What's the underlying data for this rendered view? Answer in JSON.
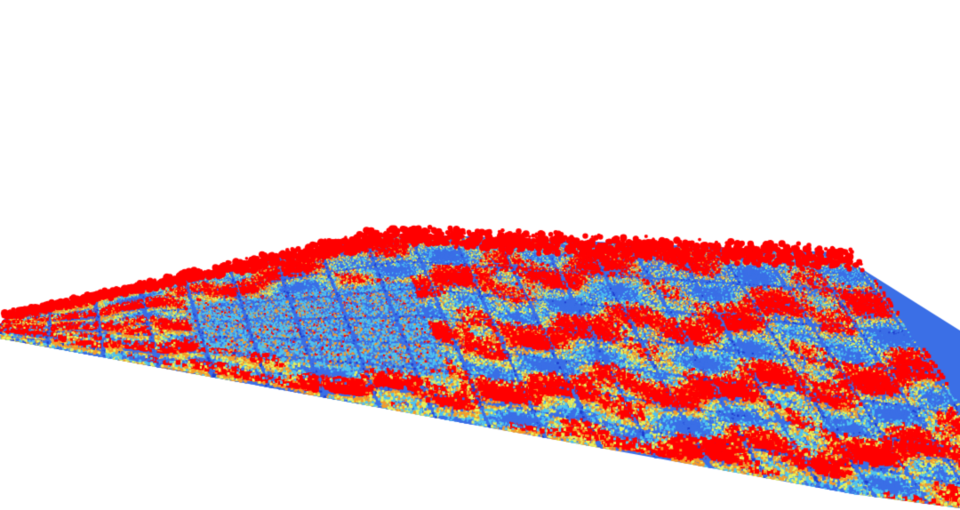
{
  "view": {
    "type": "3d-point-cloud",
    "background": "#ffffff",
    "colormap": {
      "ground": "#3b6fe6",
      "ground_dark": "#1f3fcf",
      "low": "#4fc3f0",
      "mid_low": "#e8f05a",
      "mid_high": "#f59a2a",
      "high": "#ff0000"
    }
  }
}
